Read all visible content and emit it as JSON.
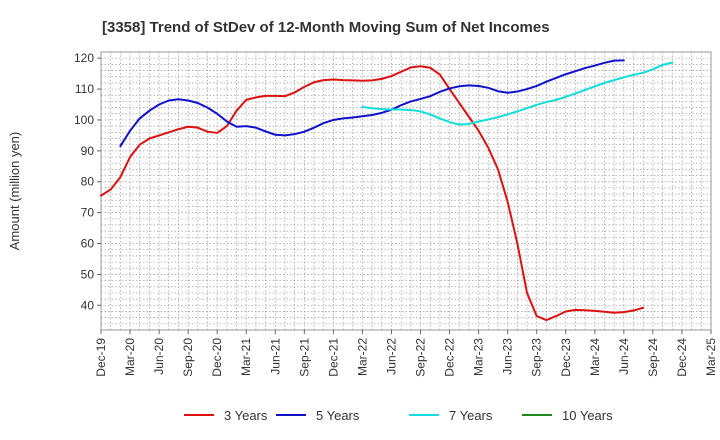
{
  "chart_data": {
    "type": "line",
    "title": "[3358]  Trend of StDev of 12-Month Moving Sum of Net Incomes",
    "ylabel": "Amount (million yen)",
    "xlabel": "",
    "ylim": [
      32,
      122
    ],
    "yticks": [
      40,
      50,
      60,
      70,
      80,
      90,
      100,
      110,
      120
    ],
    "xticks": [
      "Dec-19",
      "Mar-20",
      "Jun-20",
      "Sep-20",
      "Dec-20",
      "Mar-21",
      "Jun-21",
      "Sep-21",
      "Dec-21",
      "Mar-22",
      "Jun-22",
      "Sep-22",
      "Dec-22",
      "Mar-23",
      "Jun-23",
      "Sep-23",
      "Dec-23",
      "Mar-24",
      "Jun-24",
      "Sep-24",
      "Dec-24",
      "Mar-25"
    ],
    "grid": true,
    "legend_position": "bottom",
    "series": [
      {
        "name": "3 Years",
        "color": "#dd1111",
        "start_index": 0,
        "values": [
          75.5,
          77.5,
          81.5,
          88,
          92,
          94,
          95,
          96,
          97,
          97.8,
          97.5,
          96.2,
          95.8,
          98,
          103,
          106.5,
          107.3,
          107.8,
          107.8,
          107.7,
          108.9,
          110.7,
          112.2,
          112.9,
          113.1,
          112.9,
          112.8,
          112.7,
          112.8,
          113.3,
          114.2,
          115.6,
          117,
          117.4,
          116.9,
          114.7,
          110,
          105.5,
          101,
          96.5,
          91,
          84,
          73.5,
          60,
          44,
          36.5,
          35.2,
          36.5,
          38,
          38.5,
          38.4,
          38.2,
          37.9,
          37.6,
          37.8,
          38.3,
          39.2
        ]
      },
      {
        "name": "5 Years",
        "color": "#1111cc",
        "start_index": 2,
        "values": [
          91.5,
          96.5,
          100.5,
          103,
          105,
          106.3,
          106.7,
          106.3,
          105.5,
          104,
          102,
          99.5,
          97.8,
          98,
          97.5,
          96.3,
          95.2,
          95,
          95.4,
          96.2,
          97.5,
          99,
          100,
          100.5,
          100.8,
          101.2,
          101.6,
          102.3,
          103.3,
          104.8,
          106,
          106.8,
          107.7,
          109.1,
          110.2,
          110.9,
          111.2,
          111,
          110.4,
          109.3,
          108.8,
          109.2,
          110,
          111,
          112.4,
          113.6,
          114.8,
          115.8,
          116.8,
          117.6,
          118.5,
          119.2,
          119.3
        ]
      },
      {
        "name": "7 Years",
        "color": "#11dddd",
        "start_index": 27,
        "values": [
          104.2,
          103.8,
          103.5,
          103.4,
          103.4,
          103.2,
          102.8,
          101.8,
          100.5,
          99.3,
          98.5,
          98.7,
          99.5,
          100.2,
          100.9,
          101.8,
          102.8,
          103.8,
          104.9,
          105.8,
          106.5,
          107.5,
          108.6,
          109.7,
          110.9,
          112,
          112.9,
          113.8,
          114.6,
          115.3,
          116.4,
          117.8,
          118.6
        ]
      },
      {
        "name": "10 Years",
        "color": "#228822",
        "start_index": 0,
        "values": []
      }
    ]
  }
}
